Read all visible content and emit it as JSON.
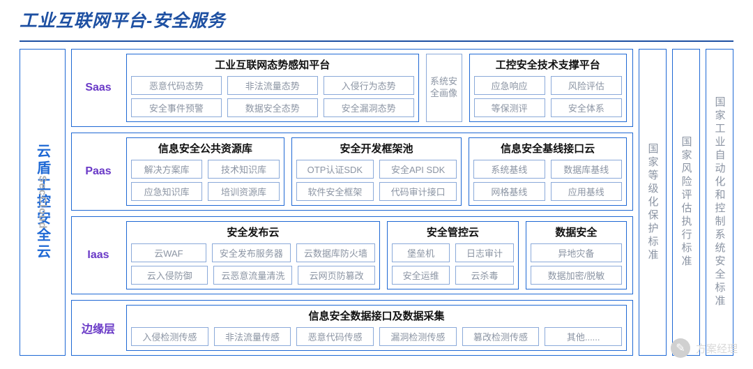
{
  "title": "工业互联网平台-安全服务",
  "colors": {
    "primary": "#1e50a2",
    "border": "#1e68d4",
    "chip_border": "#8aa9d9",
    "chip_text": "#8b94a3",
    "layer_label": "#6a3ac7",
    "title_text": "#1e50a2",
    "bg": "#ffffff"
  },
  "left_panel": {
    "cn": "云盾工控安全云",
    "en": "SecCloud"
  },
  "saas": {
    "label": "Saas",
    "left": {
      "title": "工业互联网态势感知平台",
      "row1": [
        "恶意代码态势",
        "非法流量态势",
        "入侵行为态势"
      ],
      "row2": [
        "安全事件预警",
        "数据安全态势",
        "安全漏洞态势"
      ]
    },
    "side": "系统安全画像",
    "right": {
      "title": "工控安全技术支撑平台",
      "row1": [
        "应急响应",
        "风险评估"
      ],
      "row2": [
        "等保测评",
        "安全体系"
      ]
    }
  },
  "paas": {
    "label": "Paas",
    "g1": {
      "title": "信息安全公共资源库",
      "row1": [
        "解决方案库",
        "技术知识库"
      ],
      "row2": [
        "应急知识库",
        "培训资源库"
      ]
    },
    "g2": {
      "title": "安全开发框架池",
      "row1": [
        "OTP认证SDK",
        "安全API SDK"
      ],
      "row2": [
        "软件安全框架",
        "代码审计接口"
      ]
    },
    "g3": {
      "title": "信息安全基线接口云",
      "row1": [
        "系统基线",
        "数据库基线"
      ],
      "row2": [
        "网格基线",
        "应用基线"
      ]
    }
  },
  "iaas": {
    "label": "Iaas",
    "g1": {
      "title": "安全发布云",
      "row1": [
        "云WAF",
        "安全发布服务器",
        "云数据库防火墙"
      ],
      "row2": [
        "云入侵防御",
        "云恶意流量清洗",
        "云网页防篡改"
      ]
    },
    "g2": {
      "title": "安全管控云",
      "row1": [
        "堡垒机",
        "日志审计"
      ],
      "row2": [
        "安全运维",
        "云杀毒"
      ]
    },
    "g3": {
      "title": "数据安全",
      "row1": [
        "异地灾备"
      ],
      "row2": [
        "数据加密/脱敏"
      ]
    }
  },
  "edge": {
    "label": "边缘层",
    "g": {
      "title": "信息安全数据接口及数据采集",
      "row1": [
        "入侵检测传感",
        "非法流量传感",
        "恶意代码传感",
        "漏洞检测传感",
        "篡改检测传感",
        "其他......"
      ]
    }
  },
  "standards": [
    "国家等级化保护标准",
    "国家风险评估执行标准",
    "国家工业自动化和控制系统安全标准"
  ],
  "watermark": {
    "icon": "✎",
    "text": "方案经理"
  }
}
